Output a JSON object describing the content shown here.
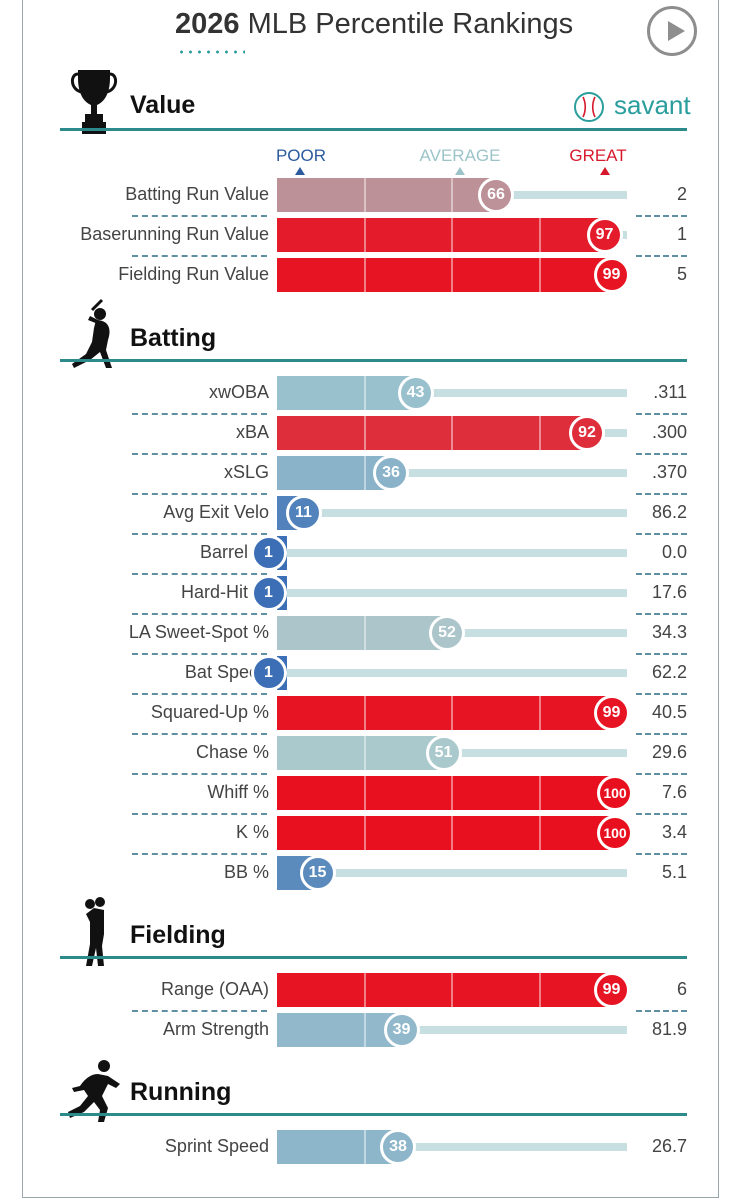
{
  "header": {
    "title_bold": "2026",
    "title_rest": " MLB Percentile Rankings"
  },
  "brand": {
    "savant": "savant"
  },
  "scale": {
    "poor": "POOR",
    "average": "AVERAGE",
    "great": "GREAT",
    "poor_color": "#2b5b9e",
    "average_color": "#9cc4c8",
    "great_color": "#d7192c"
  },
  "icons": {
    "value": "trophy-icon",
    "batting": "batter-icon",
    "fielding": "fielder-icon",
    "running": "runner-icon",
    "play": "play-icon",
    "savant": "baseball-icon"
  },
  "chart_data": {
    "type": "bar",
    "xlim": [
      0,
      100
    ],
    "sections": [
      {
        "name": "Value",
        "metrics": [
          {
            "label": "Batting Run Value",
            "percentile": 66,
            "value": "2"
          },
          {
            "label": "Baserunning Run Value",
            "percentile": 97,
            "value": "1"
          },
          {
            "label": "Fielding Run Value",
            "percentile": 99,
            "value": "5"
          }
        ]
      },
      {
        "name": "Batting",
        "metrics": [
          {
            "label": "xwOBA",
            "percentile": 43,
            "value": ".311"
          },
          {
            "label": "xBA",
            "percentile": 92,
            "value": ".300"
          },
          {
            "label": "xSLG",
            "percentile": 36,
            "value": ".370"
          },
          {
            "label": "Avg Exit Velo",
            "percentile": 11,
            "value": "86.2"
          },
          {
            "label": "Barrel %",
            "percentile": 1,
            "value": "0.0"
          },
          {
            "label": "Hard-Hit %",
            "percentile": 1,
            "value": "17.6"
          },
          {
            "label": "LA Sweet-Spot %",
            "percentile": 52,
            "value": "34.3"
          },
          {
            "label": "Bat Speed",
            "percentile": 1,
            "value": "62.2"
          },
          {
            "label": "Squared-Up %",
            "percentile": 99,
            "value": "40.5"
          },
          {
            "label": "Chase %",
            "percentile": 51,
            "value": "29.6"
          },
          {
            "label": "Whiff %",
            "percentile": 100,
            "value": "7.6"
          },
          {
            "label": "K %",
            "percentile": 100,
            "value": "3.4"
          },
          {
            "label": "BB %",
            "percentile": 15,
            "value": "5.1"
          }
        ]
      },
      {
        "name": "Fielding",
        "metrics": [
          {
            "label": "Range (OAA)",
            "percentile": 99,
            "value": "6"
          },
          {
            "label": "Arm Strength",
            "percentile": 39,
            "value": "81.9"
          }
        ]
      },
      {
        "name": "Running",
        "metrics": [
          {
            "label": "Sprint Speed",
            "percentile": 38,
            "value": "26.7"
          }
        ]
      }
    ]
  }
}
